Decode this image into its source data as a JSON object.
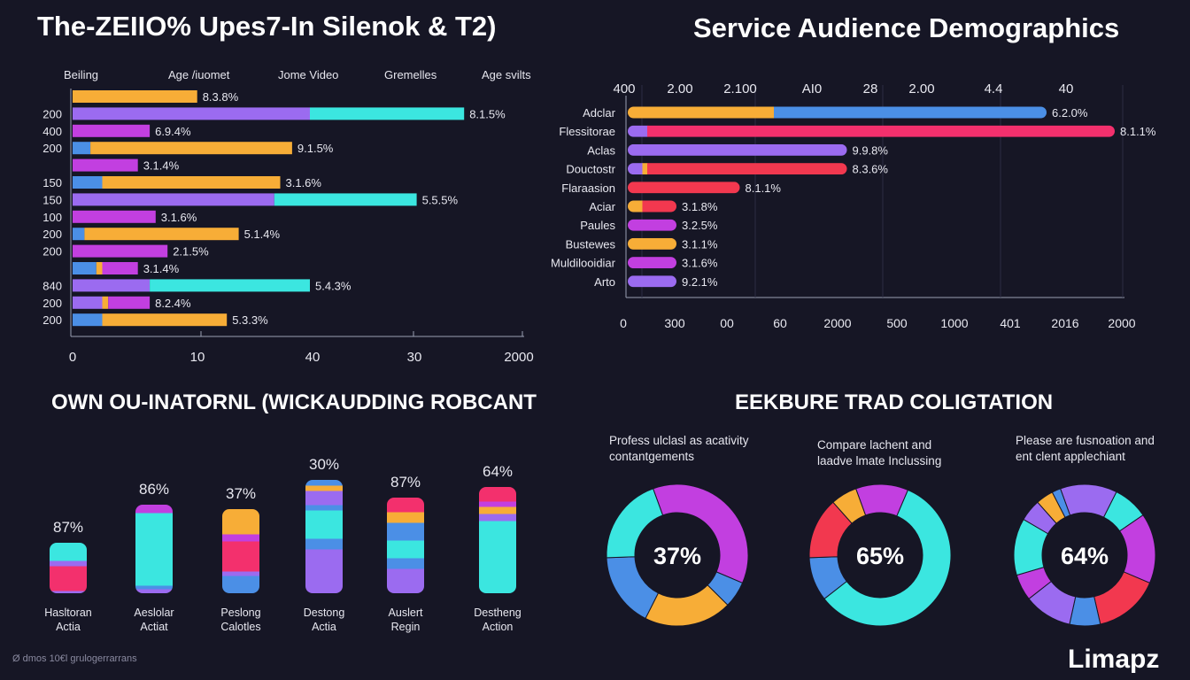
{
  "colors": {
    "background": "#161625",
    "orange": "#f7ad37",
    "cyan": "#3be6e0",
    "purple": "#9b6bf0",
    "magenta": "#c23fe0",
    "blue": "#4b8fe6",
    "pink": "#f3306d",
    "red": "#f2384f",
    "axis": "#9aa0b4"
  },
  "titles": {
    "top_left": "The-ZEIIO% Upes7-In Silenok & T2)",
    "top_right": "Service Audience Demographics",
    "bottom_left": "OWN OU-INATORNL (WICKAUDDING ROBCANT",
    "bottom_right": "EEKBURE TRAD COLIGTATION"
  },
  "branding": {
    "logo": "Limapz",
    "footer": "Ø dmos 10€l grulogerrarrans"
  },
  "chart_data": [
    {
      "type": "bar",
      "orientation": "horizontal",
      "title": "The-ZEIIO% Upes7-In Silenok & T2)",
      "column_headers": [
        "Beiling",
        "Age /iuomet",
        "Jome Video",
        "Gremelles",
        "Age svilts"
      ],
      "x_ticks": [
        "0",
        "10",
        "40",
        "30",
        "2000"
      ],
      "rows": [
        {
          "label": "",
          "value_label": "8.3.8%",
          "segments": [
            {
              "color": "orange",
              "v": 21
            }
          ]
        },
        {
          "label": "200",
          "value_label": "8.1.5%",
          "segments": [
            {
              "color": "purple",
              "v": 40
            },
            {
              "color": "cyan",
              "v": 26
            }
          ]
        },
        {
          "label": "400",
          "value_label": "6.9.4%",
          "segments": [
            {
              "color": "magenta",
              "v": 13
            }
          ]
        },
        {
          "label": "200",
          "value_label": "9.1.5%",
          "segments": [
            {
              "color": "blue",
              "v": 3
            },
            {
              "color": "orange",
              "v": 34
            }
          ]
        },
        {
          "label": "",
          "value_label": "3.1.4%",
          "segments": [
            {
              "color": "magenta",
              "v": 11
            }
          ]
        },
        {
          "label": "150",
          "value_label": "3.1.6%",
          "segments": [
            {
              "color": "blue",
              "v": 5
            },
            {
              "color": "orange",
              "v": 30
            }
          ]
        },
        {
          "label": "150",
          "value_label": "5.5.5%",
          "segments": [
            {
              "color": "purple",
              "v": 34
            },
            {
              "color": "cyan",
              "v": 24
            }
          ]
        },
        {
          "label": "100",
          "value_label": "3.1.6%",
          "segments": [
            {
              "color": "magenta",
              "v": 14
            }
          ]
        },
        {
          "label": "200",
          "value_label": "5.1.4%",
          "segments": [
            {
              "color": "blue",
              "v": 2
            },
            {
              "color": "orange",
              "v": 26
            }
          ]
        },
        {
          "label": "200",
          "value_label": "2.1.5%",
          "segments": [
            {
              "color": "magenta",
              "v": 16
            }
          ]
        },
        {
          "label": "",
          "value_label": "3.1.4%",
          "segments": [
            {
              "color": "blue",
              "v": 4
            },
            {
              "color": "orange",
              "v": 1
            },
            {
              "color": "magenta",
              "v": 6
            }
          ]
        },
        {
          "label": "840",
          "value_label": "5.4.3%",
          "segments": [
            {
              "color": "purple",
              "v": 13
            },
            {
              "color": "cyan",
              "v": 27
            }
          ]
        },
        {
          "label": "200",
          "value_label": "8.2.4%",
          "segments": [
            {
              "color": "purple",
              "v": 5
            },
            {
              "color": "orange",
              "v": 1
            },
            {
              "color": "magenta",
              "v": 7
            }
          ]
        },
        {
          "label": "200",
          "value_label": "5.3.3%",
          "segments": [
            {
              "color": "blue",
              "v": 5
            },
            {
              "color": "orange",
              "v": 21
            }
          ]
        }
      ]
    },
    {
      "type": "bar",
      "orientation": "horizontal",
      "title": "Service Audience Demographics",
      "top_ticks": [
        "400",
        "2.00",
        "2.100",
        "AI0",
        "28",
        "2.00",
        "4.4",
        "40"
      ],
      "bottom_ticks": [
        "0",
        "300",
        "00",
        "60",
        "2000",
        "500",
        "1000",
        "401",
        "2016",
        "2000"
      ],
      "rows": [
        {
          "label": "Adclar",
          "value_label": "6.2.0%",
          "segments": [
            {
              "color": "orange",
              "v": 30
            },
            {
              "color": "blue",
              "v": 56
            }
          ]
        },
        {
          "label": "Flessitorae",
          "value_label": "8.1.1%",
          "segments": [
            {
              "color": "purple",
              "v": 4
            },
            {
              "color": "pink",
              "v": 96
            }
          ]
        },
        {
          "label": "Aclas",
          "value_label": "9.9.8%",
          "segments": [
            {
              "color": "purple",
              "v": 45
            }
          ]
        },
        {
          "label": "Douctostr",
          "value_label": "8.3.6%",
          "segments": [
            {
              "color": "purple",
              "v": 3
            },
            {
              "color": "orange",
              "v": 1
            },
            {
              "color": "red",
              "v": 41
            }
          ]
        },
        {
          "label": "Flaraasion",
          "value_label": "8.1.1%",
          "segments": [
            {
              "color": "red",
              "v": 23
            }
          ]
        },
        {
          "label": "Aciar",
          "value_label": "3.1.8%",
          "segments": [
            {
              "color": "orange",
              "v": 3
            },
            {
              "color": "red",
              "v": 7
            }
          ]
        },
        {
          "label": "Paules",
          "value_label": "3.2.5%",
          "segments": [
            {
              "color": "magenta",
              "v": 10
            }
          ]
        },
        {
          "label": "Bustewes",
          "value_label": "3.1.1%",
          "segments": [
            {
              "color": "orange",
              "v": 10
            }
          ]
        },
        {
          "label": "Muldilooidiar",
          "value_label": "3.1.6%",
          "segments": [
            {
              "color": "magenta",
              "v": 10
            }
          ]
        },
        {
          "label": "Arto",
          "value_label": "9.2.1%",
          "segments": [
            {
              "color": "purple",
              "v": 10
            }
          ]
        }
      ]
    },
    {
      "type": "bar",
      "orientation": "vertical-stacked",
      "title": "OWN OU-INATORNL (WICKAUDDING ROBCANT",
      "columns": [
        {
          "pct": "87%",
          "label_1": "Hasltoran",
          "label_2": "Actia",
          "total": 57,
          "segments": [
            {
              "color": "purple",
              "v": 3
            },
            {
              "color": "pink",
              "v": 28
            },
            {
              "color": "purple",
              "v": 6
            },
            {
              "color": "cyan",
              "v": 20
            }
          ]
        },
        {
          "pct": "86%",
          "label_1": "Aeslolar",
          "label_2": "Actiat",
          "total": 100,
          "segments": [
            {
              "color": "purple",
              "v": 5
            },
            {
              "color": "blue",
              "v": 4
            },
            {
              "color": "cyan",
              "v": 82
            },
            {
              "color": "magenta",
              "v": 9
            }
          ]
        },
        {
          "pct": "37%",
          "label_1": "Peslong",
          "label_2": "Calotles",
          "total": 95,
          "segments": [
            {
              "color": "blue",
              "v": 20
            },
            {
              "color": "purple",
              "v": 5
            },
            {
              "color": "pink",
              "v": 34
            },
            {
              "color": "magenta",
              "v": 8
            },
            {
              "color": "orange",
              "v": 28
            }
          ]
        },
        {
          "pct": "30%",
          "label_1": "Destong",
          "label_2": "Actia",
          "total": 128,
          "segments": [
            {
              "color": "purple",
              "v": 50
            },
            {
              "color": "blue",
              "v": 12
            },
            {
              "color": "cyan",
              "v": 32
            },
            {
              "color": "blue",
              "v": 6
            },
            {
              "color": "purple",
              "v": 16
            },
            {
              "color": "orange",
              "v": 6
            },
            {
              "color": "blue",
              "v": 6
            }
          ]
        },
        {
          "pct": "87%",
          "label_1": "Auslert",
          "label_2": "Regin",
          "total": 108,
          "segments": [
            {
              "color": "purple",
              "v": 28
            },
            {
              "color": "blue",
              "v": 12
            },
            {
              "color": "cyan",
              "v": 20
            },
            {
              "color": "blue",
              "v": 20
            },
            {
              "color": "orange",
              "v": 12
            },
            {
              "color": "pink",
              "v": 16
            }
          ]
        },
        {
          "pct": "64%",
          "label_1": "Destheng",
          "label_2": "Action",
          "total": 120,
          "segments": [
            {
              "color": "cyan",
              "v": 82
            },
            {
              "color": "purple",
              "v": 8
            },
            {
              "color": "orange",
              "v": 8
            },
            {
              "color": "magenta",
              "v": 6
            },
            {
              "color": "pink",
              "v": 16
            }
          ]
        }
      ]
    },
    {
      "type": "pie",
      "variant": "donut",
      "title": "EEKBURE TRAD COLIGTATION",
      "donuts": [
        {
          "center_label": "37%",
          "caption": "Profess ulclasl as acativity contantgements",
          "slices": [
            {
              "color": "magenta",
              "v": 37
            },
            {
              "color": "blue",
              "v": 6
            },
            {
              "color": "orange",
              "v": 20
            },
            {
              "color": "blue",
              "v": 17
            },
            {
              "color": "cyan",
              "v": 20
            }
          ]
        },
        {
          "center_label": "65%",
          "caption": "Compare lachent and laadve lmate Inclussing",
          "slices": [
            {
              "color": "magenta",
              "v": 12
            },
            {
              "color": "cyan",
              "v": 58
            },
            {
              "color": "blue",
              "v": 10
            },
            {
              "color": "red",
              "v": 14
            },
            {
              "color": "orange",
              "v": 6
            }
          ]
        },
        {
          "center_label": "64%",
          "caption": "Please are fusnoation and ent clent applechiant",
          "slices": [
            {
              "color": "purple",
              "v": 13
            },
            {
              "color": "cyan",
              "v": 8
            },
            {
              "color": "magenta",
              "v": 16
            },
            {
              "color": "red",
              "v": 15
            },
            {
              "color": "blue",
              "v": 7
            },
            {
              "color": "purple",
              "v": 11
            },
            {
              "color": "magenta",
              "v": 6
            },
            {
              "color": "cyan",
              "v": 13
            },
            {
              "color": "purple",
              "v": 5
            },
            {
              "color": "orange",
              "v": 4
            },
            {
              "color": "blue",
              "v": 2
            }
          ]
        }
      ]
    }
  ]
}
